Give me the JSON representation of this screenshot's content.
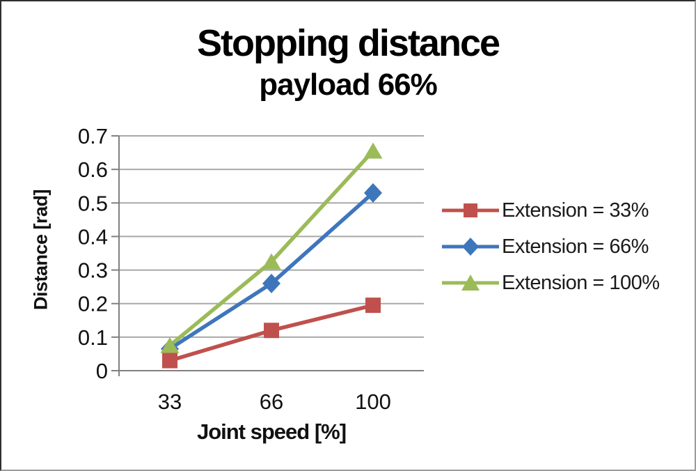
{
  "chart_data": {
    "type": "line",
    "title": "Stopping distance",
    "subtitle": "payload 66%",
    "xlabel": "Joint speed [%]",
    "ylabel": "Distance [rad]",
    "categories": [
      "33",
      "66",
      "100"
    ],
    "series": [
      {
        "name": "Extension = 33%",
        "marker": "square",
        "color": "#C0504D",
        "values": [
          0.03,
          0.12,
          0.195
        ]
      },
      {
        "name": "Extension = 66%",
        "marker": "diamond",
        "color": "#3E76BC",
        "values": [
          0.065,
          0.26,
          0.53
        ]
      },
      {
        "name": "Extension = 100%",
        "marker": "triangle",
        "color": "#9BBB59",
        "values": [
          0.075,
          0.325,
          0.655
        ]
      }
    ],
    "ylim": [
      0,
      0.7
    ],
    "ytick_step": 0.1,
    "ytick_labels": [
      "0",
      "0.1",
      "0.2",
      "0.3",
      "0.4",
      "0.5",
      "0.6",
      "0.7"
    ],
    "grid": true,
    "legend_position": "right",
    "gridline_color": "#A8A8A8",
    "axis_color": "#808080",
    "text_color": "#111111"
  }
}
